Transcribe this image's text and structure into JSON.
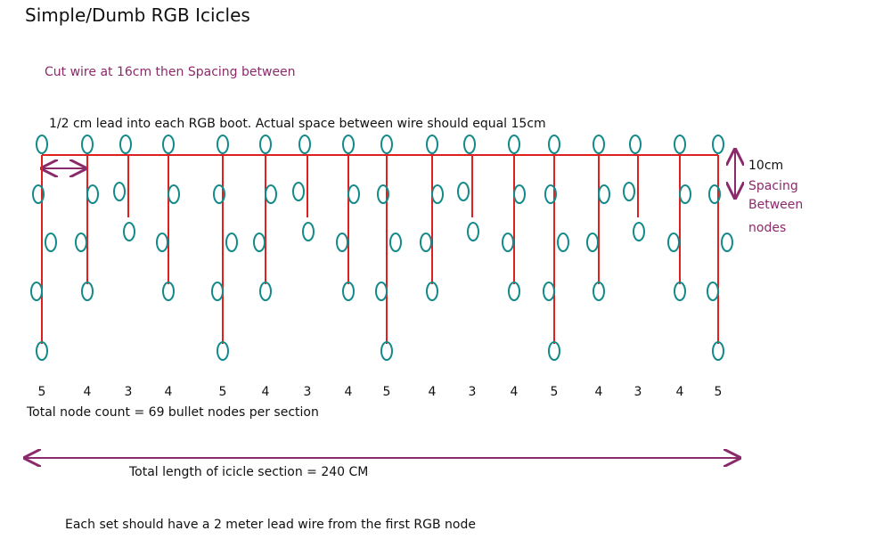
{
  "title": "Simple/Dumb  RGB Icicles",
  "notes": {
    "cut_wire": "Cut wire at 16cm then Spacing between",
    "lead_into": "1/2 cm lead into each RGB boot.  Actual space between wire should equal 15cm",
    "spacing_value": "10cm",
    "spacing_lines": [
      "Spacing",
      "Between",
      "nodes"
    ],
    "total_nodes": "Total node count = 69 bullet nodes per section",
    "total_length": "Total length of icicle section = 240 CM",
    "lead_wire": "Each set should have a 2 meter lead wire from the first RGB node"
  },
  "drops": [
    {
      "count": 5
    },
    {
      "count": 4
    },
    {
      "count": 3
    },
    {
      "count": 4
    },
    {
      "count": 5
    },
    {
      "count": 4
    },
    {
      "count": 3
    },
    {
      "count": 4
    },
    {
      "count": 5
    },
    {
      "count": 4
    },
    {
      "count": 3
    },
    {
      "count": 4
    },
    {
      "count": 5
    },
    {
      "count": 4
    },
    {
      "count": 3
    },
    {
      "count": 4
    },
    {
      "count": 5
    }
  ]
}
